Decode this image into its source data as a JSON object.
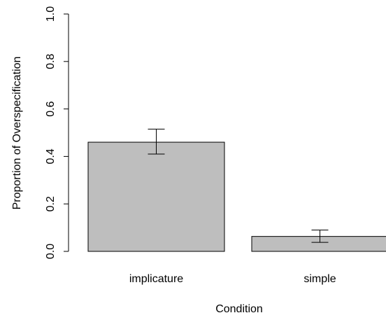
{
  "chart_data": {
    "type": "bar",
    "title": "",
    "xlabel": "Condition",
    "ylabel": "Proportion of Overspecification",
    "categories": [
      "implicature",
      "simple"
    ],
    "values": [
      0.46,
      0.063
    ],
    "error_low": [
      0.41,
      0.038
    ],
    "error_high": [
      0.515,
      0.09
    ],
    "ylim": [
      0,
      1
    ],
    "yticks": [
      0,
      0.2,
      0.4,
      0.6,
      0.8,
      1
    ],
    "ytick_labels": [
      "0.0",
      "0.2",
      "0.4",
      "0.6",
      "0.8",
      "1.0"
    ],
    "grid": false,
    "legend": false,
    "bar_color": "#bebebe",
    "axis_color": "#000000"
  }
}
